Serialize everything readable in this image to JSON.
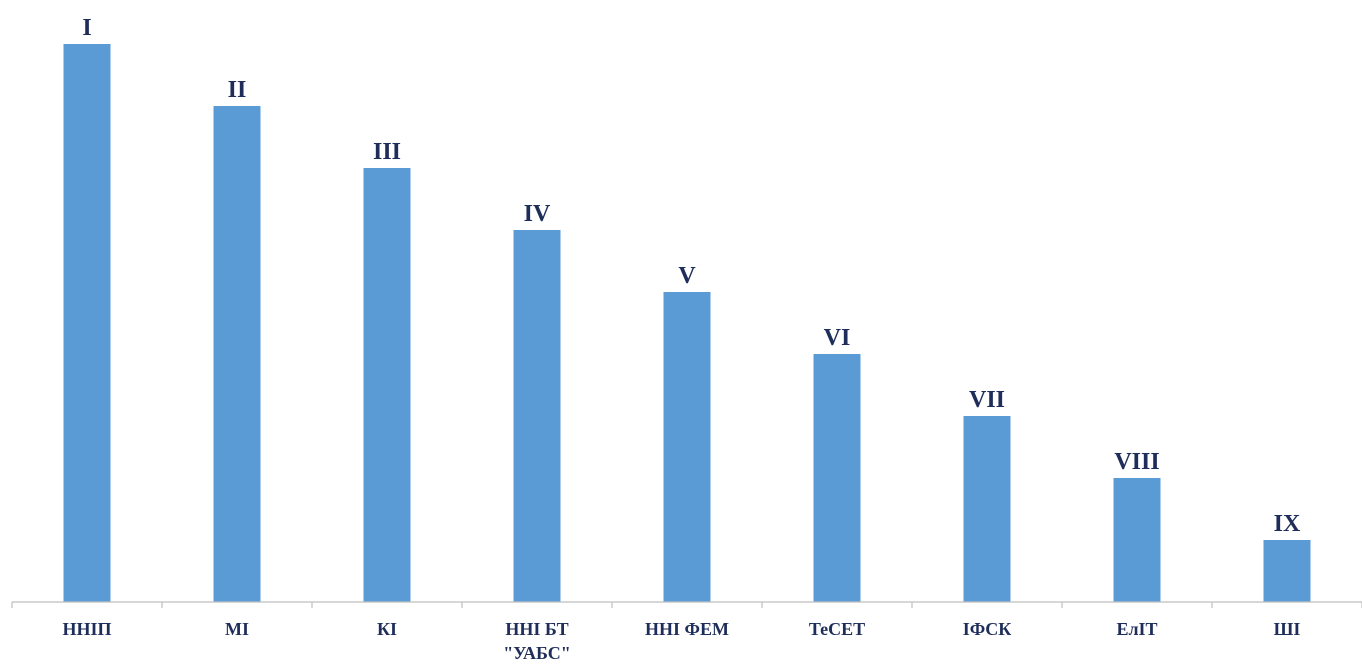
{
  "chart_data": {
    "type": "bar",
    "categories": [
      "ННІП",
      "МІ",
      "КІ",
      "ННІ БТ\n\"УАБС\"",
      "ННІ ФЕМ",
      "ТеСЕТ",
      "ІФСК",
      "ЕлІТ",
      "ШІ"
    ],
    "values": [
      9,
      8,
      7,
      6,
      5,
      4,
      3,
      2,
      1
    ],
    "data_labels": [
      "I",
      "II",
      "III",
      "IV",
      "V",
      "VI",
      "VII",
      "VIII",
      "IX"
    ],
    "ylim": [
      0,
      9
    ],
    "grid": false,
    "legend": "none",
    "colors": {
      "bar": "#5b9bd5",
      "axis": "#bfbfbf",
      "text": "#1f2d5a"
    }
  }
}
